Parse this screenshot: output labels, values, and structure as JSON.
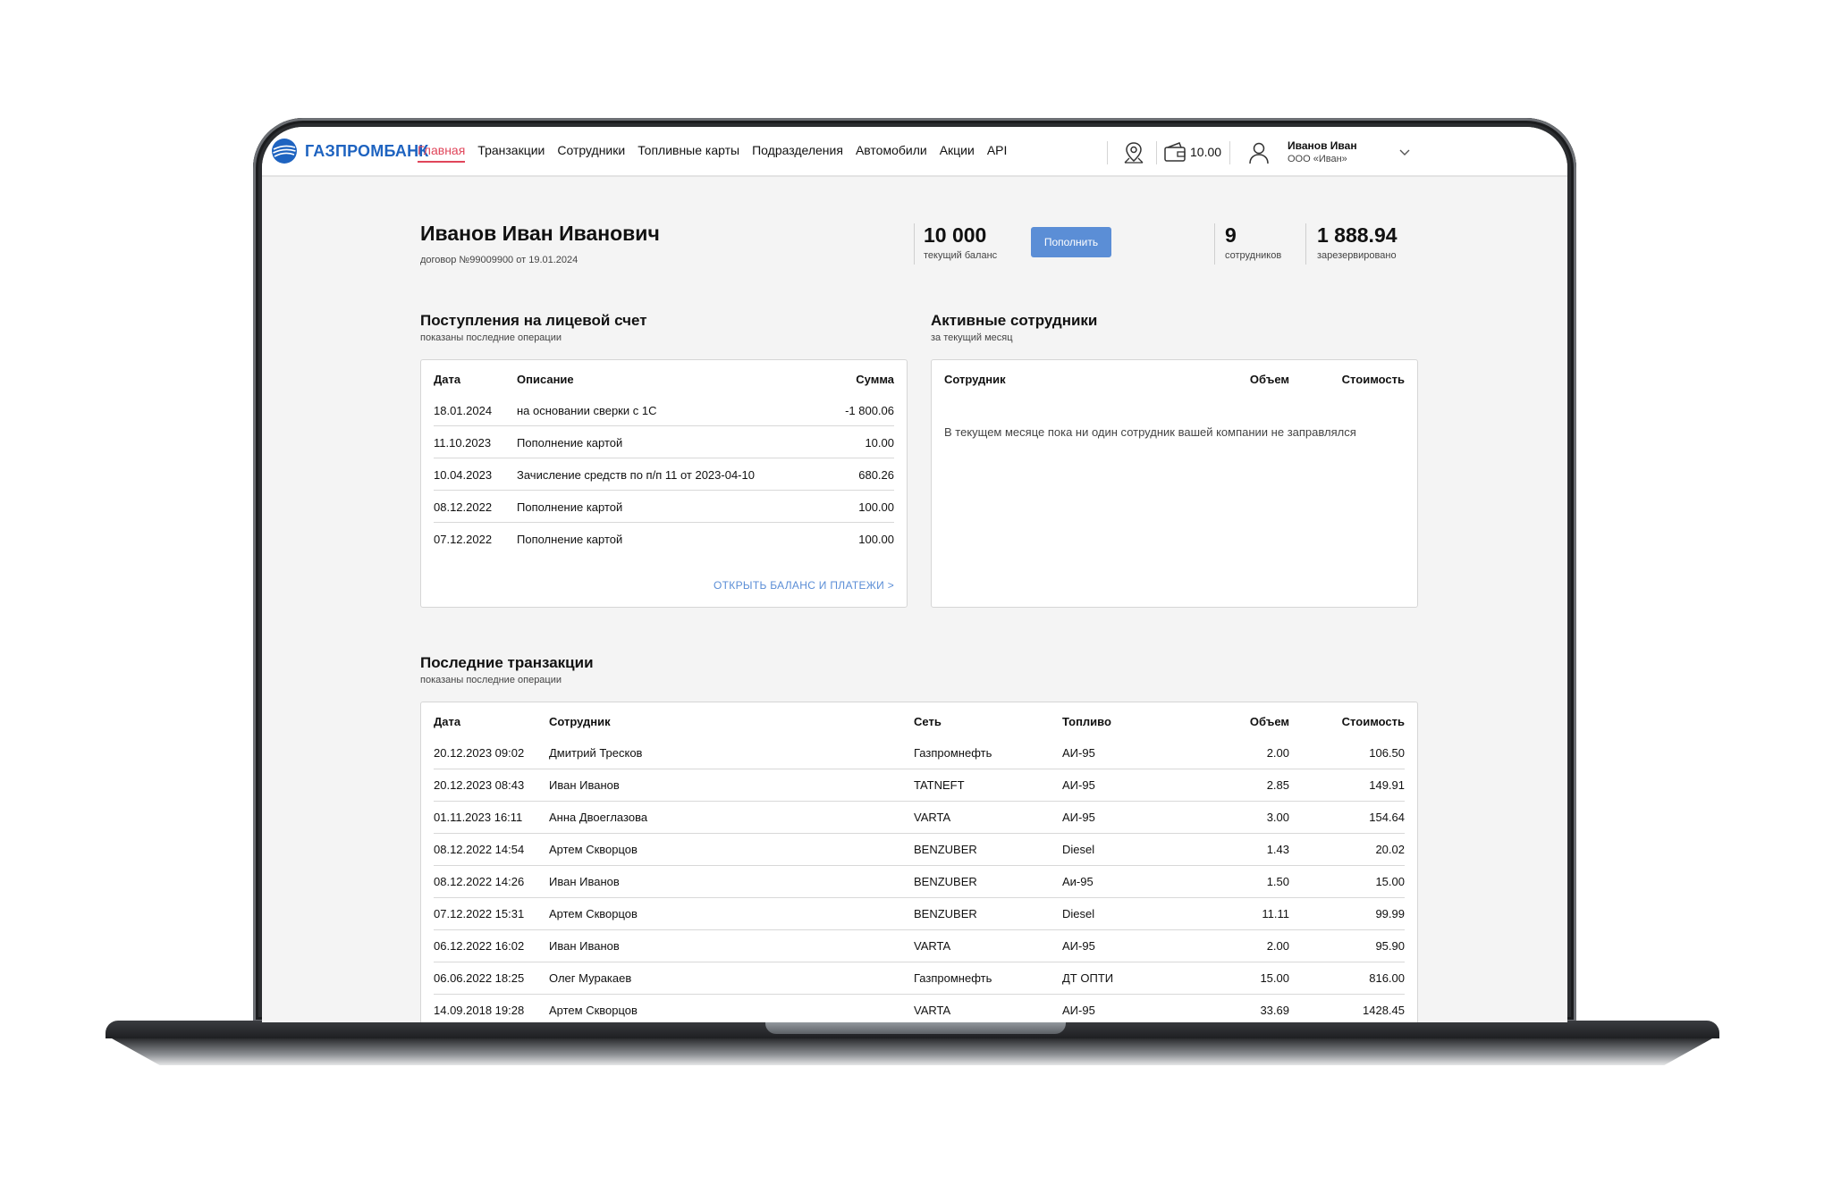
{
  "header": {
    "logo_text": "ГАЗПРОМБАНК",
    "nav": [
      "Главная",
      "Транзакции",
      "Сотрудники",
      "Топливные карты",
      "Подразделения",
      "Автомобили",
      "Акции",
      "API"
    ],
    "wallet_value": "10.00",
    "user_name": "Иванов Иван",
    "user_org": "ООО «Иван»"
  },
  "profile": {
    "name": "Иванов Иван Иванович",
    "contract": "договор №99009900 от 19.01.2024",
    "balance_value": "10 000",
    "balance_label": "текущий баланс",
    "topup_label": "Пополнить",
    "employees_value": "9",
    "employees_label": "сотрудников",
    "reserved_value": "1 888.94",
    "reserved_label": "зарезервировано"
  },
  "incoming": {
    "title": "Поступления на лицевой счет",
    "subtitle": "показаны последние операции",
    "columns": [
      "Дата",
      "Описание",
      "Сумма"
    ],
    "rows": [
      {
        "date": "18.01.2024",
        "desc": "на основании сверки с 1С",
        "sum": "-1 800.06"
      },
      {
        "date": "11.10.2023",
        "desc": "Пополнение картой",
        "sum": "10.00"
      },
      {
        "date": "10.04.2023",
        "desc": "Зачисление средств по п/п 11 от 2023-04-10",
        "sum": "680.26"
      },
      {
        "date": "08.12.2022",
        "desc": "Пополнение картой",
        "sum": "100.00"
      },
      {
        "date": "07.12.2022",
        "desc": "Пополнение картой",
        "sum": "100.00"
      }
    ],
    "link": "ОТКРЫТЬ БАЛАНС И ПЛАТЕЖИ >"
  },
  "active": {
    "title": "Активные сотрудники",
    "subtitle": "за текущий месяц",
    "columns": [
      "Сотрудник",
      "Объем",
      "Стоимость"
    ],
    "empty": "В текущем месяце пока ни один сотрудник вашей компании не заправлялся"
  },
  "transactions": {
    "title": "Последние транзакции",
    "subtitle": "показаны последние операции",
    "columns": [
      "Дата",
      "Сотрудник",
      "Сеть",
      "Топливо",
      "Объем",
      "Стоимость"
    ],
    "rows": [
      {
        "date": "20.12.2023 09:02",
        "employee": "Дмитрий Тресков",
        "net": "Газпромнефть",
        "fuel": "АИ-95",
        "vol": "2.00",
        "cost": "106.50"
      },
      {
        "date": "20.12.2023 08:43",
        "employee": "Иван Иванов",
        "net": "TATNEFT",
        "fuel": "АИ-95",
        "vol": "2.85",
        "cost": "149.91"
      },
      {
        "date": "01.11.2023 16:11",
        "employee": "Анна Двоеглазова",
        "net": "VARTA",
        "fuel": "АИ-95",
        "vol": "3.00",
        "cost": "154.64"
      },
      {
        "date": "08.12.2022 14:54",
        "employee": "Артем Скворцов",
        "net": "BENZUBER",
        "fuel": "Diesel",
        "vol": "1.43",
        "cost": "20.02"
      },
      {
        "date": "08.12.2022 14:26",
        "employee": "Иван Иванов",
        "net": "BENZUBER",
        "fuel": "Аи-95",
        "vol": "1.50",
        "cost": "15.00"
      },
      {
        "date": "07.12.2022 15:31",
        "employee": "Артем Скворцов",
        "net": "BENZUBER",
        "fuel": "Diesel",
        "vol": "11.11",
        "cost": "99.99"
      },
      {
        "date": "06.12.2022 16:02",
        "employee": "Иван Иванов",
        "net": "VARTA",
        "fuel": "АИ-95",
        "vol": "2.00",
        "cost": "95.90"
      },
      {
        "date": "06.06.2022 18:25",
        "employee": "Олег Муракаев",
        "net": "Газпромнефть",
        "fuel": "ДТ ОПТИ",
        "vol": "15.00",
        "cost": "816.00"
      },
      {
        "date": "14.09.2018 19:28",
        "employee": "Артем Скворцов",
        "net": "VARTA",
        "fuel": "АИ-95",
        "vol": "33.69",
        "cost": "1428.45"
      }
    ]
  },
  "icons": {
    "logo": "gazprombank-logo-icon",
    "map": "map-pin-icon",
    "wallet": "wallet-icon",
    "user": "user-icon",
    "chevron": "chevron-down-icon"
  },
  "colors": {
    "accent_red": "#e0455a",
    "primary_blue": "#5b8ed6",
    "logo_blue": "#1e63c0"
  }
}
